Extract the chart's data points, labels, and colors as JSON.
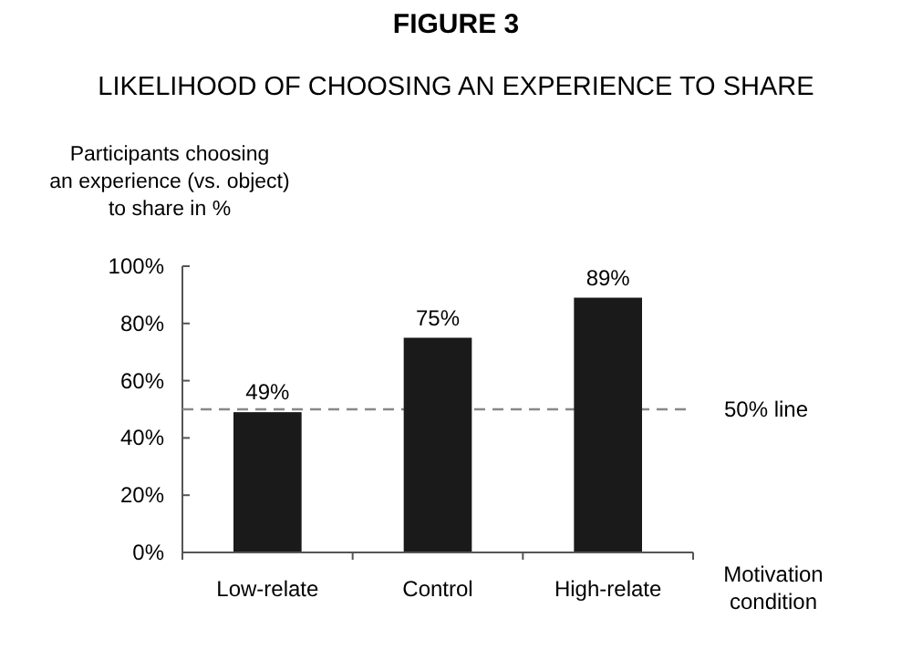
{
  "chart_data": {
    "type": "bar",
    "title": "FIGURE 3",
    "subtitle": "LIKELIHOOD OF CHOOSING AN EXPERIENCE TO SHARE",
    "ylabel": "Participants choosing\nan experience (vs. object)\nto share in %",
    "xlabel": "Motivation\ncondition",
    "categories": [
      "Low-relate",
      "Control",
      "High-relate"
    ],
    "values": [
      49,
      75,
      89
    ],
    "value_labels": [
      "49%",
      "75%",
      "89%"
    ],
    "color": "#1a1a1a",
    "ylim": [
      0,
      100
    ],
    "yticks": [
      {
        "value": 0,
        "label": "0%"
      },
      {
        "value": 20,
        "label": "20%"
      },
      {
        "value": 40,
        "label": "40%"
      },
      {
        "value": 60,
        "label": "60%"
      },
      {
        "value": 80,
        "label": "80%"
      },
      {
        "value": 100,
        "label": "100%"
      }
    ],
    "ref_lines": [
      {
        "axis": "y",
        "value": 50,
        "label": "50% line",
        "color": "#888888",
        "line_style": "dashed"
      }
    ],
    "grid": false
  }
}
